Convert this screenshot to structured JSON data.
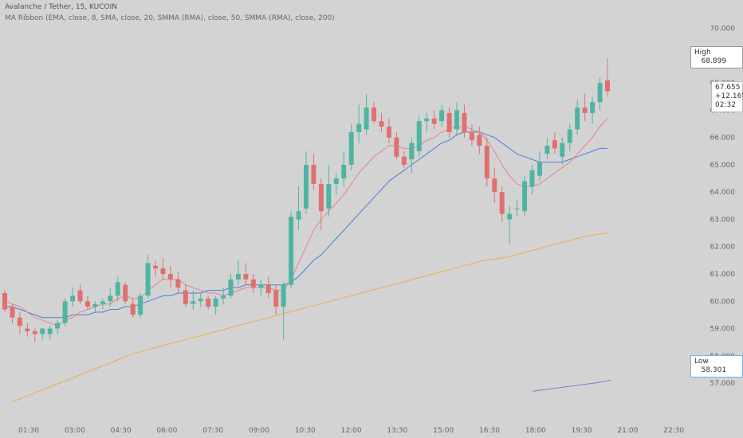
{
  "header": {
    "symbol_line": "Avalanche / Tether, 15, KUCOIN",
    "indicator_line": "MA Ribbon (EMA, close, 8, SMA, close, 20, SMMA (RMA), close, 50, SMMA (RMA), close, 200)"
  },
  "markers": {
    "high_label": "High",
    "high_value": "68.899",
    "low_label": "Low",
    "low_value": "58.301",
    "last_price": "67.655",
    "change_pct": "+12.16%",
    "countdown": "02:32"
  },
  "colors": {
    "up": "#4fb5a2",
    "down": "#e07070",
    "ema8": "#e3848c",
    "sma20": "#4a7fd6",
    "smma50": "#f0ab48",
    "smma200": "#8a78c8"
  },
  "chart_data": {
    "type": "candlestick",
    "y_ticks": [
      "70.000",
      "69.000",
      "68.000",
      "67.000",
      "66.000",
      "65.000",
      "64.000",
      "63.000",
      "62.000",
      "61.000",
      "60.000",
      "59.000",
      "58.000",
      "57.000"
    ],
    "x_ticks": [
      "01:30",
      "03:00",
      "04:30",
      "06:00",
      "07:30",
      "09:00",
      "10:30",
      "12:00",
      "13:30",
      "15:00",
      "16:30",
      "18:00",
      "19:30",
      "21:00",
      "22:30"
    ],
    "ylim": [
      56.3,
      70.4
    ],
    "candles": [
      [
        60.3,
        60.4,
        59.6,
        59.7
      ],
      [
        59.8,
        59.9,
        59.2,
        59.4
      ],
      [
        59.4,
        59.6,
        58.8,
        59.1
      ],
      [
        59.0,
        59.2,
        58.7,
        58.9
      ],
      [
        58.9,
        59.0,
        58.5,
        58.8
      ],
      [
        58.8,
        59.0,
        58.6,
        59.0
      ],
      [
        58.8,
        59.1,
        58.6,
        59.0
      ],
      [
        59.0,
        59.3,
        58.8,
        59.2
      ],
      [
        59.2,
        60.1,
        59.1,
        60.0
      ],
      [
        60.0,
        60.5,
        59.8,
        60.2
      ],
      [
        60.4,
        60.6,
        59.9,
        60.0
      ],
      [
        60.0,
        60.2,
        59.7,
        59.8
      ],
      [
        59.8,
        60.0,
        59.6,
        59.9
      ],
      [
        59.9,
        60.1,
        59.7,
        60.0
      ],
      [
        60.0,
        60.5,
        59.8,
        60.2
      ],
      [
        60.2,
        60.9,
        60.0,
        60.7
      ],
      [
        60.6,
        60.7,
        59.9,
        60.0
      ],
      [
        59.9,
        60.1,
        59.4,
        59.5
      ],
      [
        59.5,
        60.3,
        59.4,
        60.2
      ],
      [
        60.2,
        61.7,
        60.1,
        61.4
      ],
      [
        61.3,
        61.5,
        60.9,
        61.2
      ],
      [
        61.2,
        61.6,
        60.8,
        61.0
      ],
      [
        61.0,
        61.3,
        60.5,
        60.8
      ],
      [
        60.8,
        61.1,
        60.3,
        60.5
      ],
      [
        60.4,
        60.6,
        59.8,
        59.9
      ],
      [
        59.9,
        60.4,
        59.7,
        60.0
      ],
      [
        60.0,
        60.3,
        59.8,
        60.1
      ],
      [
        60.1,
        60.2,
        59.7,
        59.8
      ],
      [
        59.8,
        60.2,
        59.5,
        60.1
      ],
      [
        60.1,
        60.5,
        59.9,
        60.2
      ],
      [
        60.2,
        61.0,
        60.1,
        60.8
      ],
      [
        60.8,
        61.5,
        60.6,
        61.0
      ],
      [
        61.0,
        61.4,
        60.6,
        60.8
      ],
      [
        60.8,
        61.0,
        60.3,
        60.5
      ],
      [
        60.5,
        60.8,
        60.2,
        60.6
      ],
      [
        60.6,
        60.9,
        60.1,
        60.3
      ],
      [
        60.4,
        60.6,
        59.5,
        59.8
      ],
      [
        59.8,
        60.7,
        58.6,
        60.6
      ],
      [
        60.6,
        63.3,
        60.5,
        63.1
      ],
      [
        63.0,
        64.2,
        62.6,
        63.3
      ],
      [
        63.4,
        65.5,
        63.2,
        65.0
      ],
      [
        65.0,
        65.4,
        64.1,
        64.3
      ],
      [
        64.3,
        64.5,
        62.6,
        63.3
      ],
      [
        63.4,
        65.0,
        63.1,
        64.3
      ],
      [
        64.3,
        64.7,
        63.9,
        64.5
      ],
      [
        64.5,
        65.5,
        64.2,
        65.0
      ],
      [
        65.0,
        66.5,
        64.8,
        66.2
      ],
      [
        66.2,
        67.2,
        65.8,
        66.5
      ],
      [
        66.3,
        67.6,
        66.1,
        67.1
      ],
      [
        67.1,
        67.3,
        66.5,
        66.6
      ],
      [
        66.6,
        66.9,
        66.2,
        66.4
      ],
      [
        66.4,
        66.7,
        65.8,
        66.0
      ],
      [
        66.0,
        66.2,
        65.2,
        65.3
      ],
      [
        65.3,
        65.5,
        64.9,
        65.0
      ],
      [
        65.2,
        66.0,
        64.7,
        65.8
      ],
      [
        65.5,
        66.8,
        65.3,
        66.6
      ],
      [
        66.6,
        66.9,
        66.2,
        66.7
      ],
      [
        66.7,
        67.0,
        66.3,
        66.5
      ],
      [
        66.6,
        67.2,
        66.4,
        67.0
      ],
      [
        66.9,
        67.1,
        66.0,
        66.2
      ],
      [
        66.3,
        67.3,
        66.1,
        67.0
      ],
      [
        66.9,
        67.2,
        66.0,
        66.2
      ],
      [
        66.2,
        66.5,
        65.7,
        65.9
      ],
      [
        66.1,
        66.4,
        65.4,
        65.7
      ],
      [
        65.7,
        66.0,
        64.2,
        64.5
      ],
      [
        64.5,
        64.9,
        63.6,
        64.0
      ],
      [
        64.0,
        64.2,
        62.9,
        63.2
      ],
      [
        63.0,
        63.5,
        62.1,
        63.2
      ],
      [
        63.4,
        63.7,
        63.1,
        63.4
      ],
      [
        63.3,
        64.6,
        63.1,
        64.4
      ],
      [
        64.2,
        65.0,
        63.9,
        64.8
      ],
      [
        64.6,
        65.5,
        64.4,
        65.1
      ],
      [
        65.4,
        66.0,
        65.2,
        65.7
      ],
      [
        65.9,
        66.2,
        65.4,
        65.6
      ],
      [
        65.3,
        66.0,
        65.0,
        65.8
      ],
      [
        65.8,
        66.5,
        65.5,
        66.3
      ],
      [
        66.3,
        67.4,
        66.1,
        67.1
      ],
      [
        67.1,
        67.6,
        66.6,
        66.9
      ],
      [
        66.9,
        67.5,
        66.5,
        67.3
      ],
      [
        67.3,
        68.2,
        67.0,
        68.0
      ],
      [
        68.1,
        68.9,
        67.5,
        67.7
      ]
    ],
    "ema8": [
      60.0,
      59.9,
      59.8,
      59.6,
      59.4,
      59.3,
      59.2,
      59.1,
      59.3,
      59.4,
      59.6,
      59.7,
      59.8,
      59.9,
      59.9,
      60.1,
      60.2,
      60.1,
      60.1,
      60.4,
      60.6,
      60.8,
      60.8,
      60.8,
      60.6,
      60.5,
      60.4,
      60.3,
      60.3,
      60.2,
      60.3,
      60.4,
      60.5,
      60.5,
      60.5,
      60.5,
      60.4,
      60.4,
      60.8,
      61.4,
      62.0,
      62.6,
      63.0,
      63.3,
      63.6,
      63.9,
      64.3,
      64.7,
      65.0,
      65.3,
      65.5,
      65.7,
      65.7,
      65.6,
      65.6,
      65.7,
      65.9,
      66.0,
      66.2,
      66.3,
      66.4,
      66.4,
      66.3,
      66.2,
      65.9,
      65.5,
      65.0,
      64.6,
      64.3,
      64.2,
      64.2,
      64.3,
      64.5,
      64.7,
      64.9,
      65.1,
      65.4,
      65.7,
      66.0,
      66.4,
      66.7
    ],
    "sma20": [
      59.8,
      59.8,
      59.7,
      59.6,
      59.5,
      59.4,
      59.4,
      59.4,
      59.4,
      59.5,
      59.5,
      59.5,
      59.6,
      59.6,
      59.7,
      59.7,
      59.8,
      59.8,
      59.9,
      60.0,
      60.1,
      60.2,
      60.2,
      60.3,
      60.3,
      60.3,
      60.3,
      60.4,
      60.4,
      60.4,
      60.5,
      60.5,
      60.6,
      60.6,
      60.6,
      60.6,
      60.6,
      60.6,
      60.7,
      60.9,
      61.2,
      61.5,
      61.7,
      62.0,
      62.3,
      62.6,
      62.9,
      63.2,
      63.5,
      63.8,
      64.1,
      64.4,
      64.6,
      64.8,
      65.0,
      65.2,
      65.4,
      65.6,
      65.8,
      65.9,
      66.1,
      66.2,
      66.2,
      66.2,
      66.1,
      66.0,
      65.8,
      65.6,
      65.4,
      65.3,
      65.2,
      65.1,
      65.1,
      65.1,
      65.1,
      65.2,
      65.3,
      65.4,
      65.5,
      65.6,
      65.6
    ],
    "smma50_points": [
      [
        5,
        56.3
      ],
      [
        20,
        56.6
      ],
      [
        35,
        56.9
      ],
      [
        50,
        57.2
      ],
      [
        65,
        57.5
      ],
      [
        80,
        57.8
      ],
      [
        95,
        58.1
      ],
      [
        110,
        58.3
      ],
      [
        125,
        58.5
      ],
      [
        140,
        58.7
      ],
      [
        155,
        58.9
      ],
      [
        170,
        59.1
      ],
      [
        185,
        59.3
      ],
      [
        200,
        59.5
      ],
      [
        215,
        59.7
      ],
      [
        230,
        59.9
      ],
      [
        245,
        60.1
      ],
      [
        260,
        60.3
      ],
      [
        275,
        60.5
      ],
      [
        290,
        60.7
      ],
      [
        305,
        60.9
      ],
      [
        320,
        61.1
      ],
      [
        335,
        61.3
      ],
      [
        350,
        61.5
      ],
      [
        365,
        61.6
      ],
      [
        380,
        61.8
      ],
      [
        395,
        62.0
      ],
      [
        410,
        62.2
      ],
      [
        425,
        62.4
      ],
      [
        440,
        62.5
      ]
    ],
    "smma200_points": [
      [
        385,
        56.7
      ],
      [
        400,
        56.8
      ],
      [
        415,
        56.9
      ],
      [
        430,
        57.0
      ],
      [
        442,
        57.1
      ]
    ]
  }
}
